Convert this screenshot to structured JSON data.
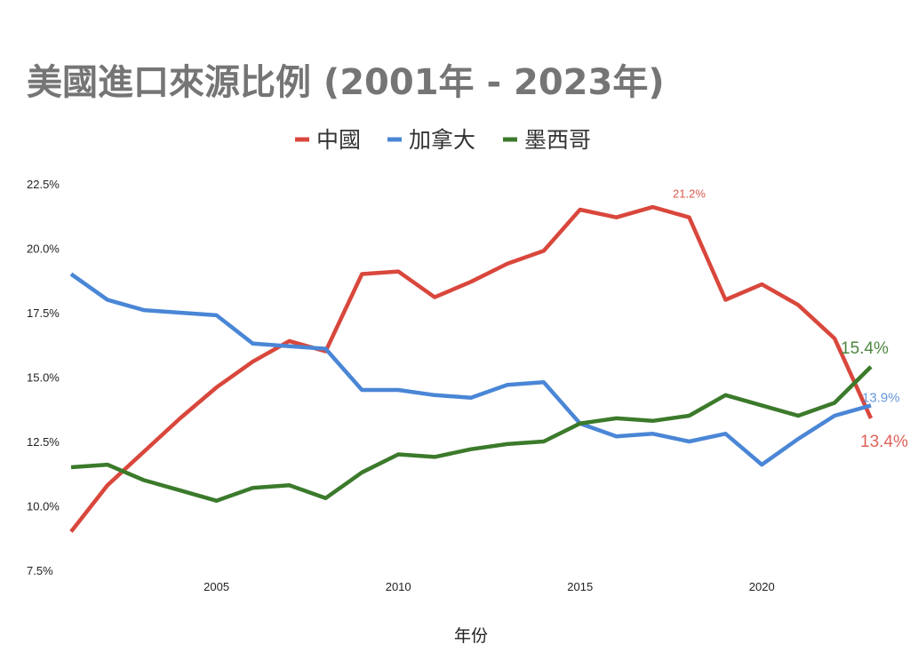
{
  "chart_data": {
    "type": "line",
    "title": "美國進口來源比例 (2001年 - 2023年)",
    "xlabel": "年份",
    "ylabel": "",
    "x": [
      2001,
      2002,
      2003,
      2004,
      2005,
      2006,
      2007,
      2008,
      2009,
      2010,
      2011,
      2012,
      2013,
      2014,
      2015,
      2016,
      2017,
      2018,
      2019,
      2020,
      2021,
      2022,
      2023
    ],
    "xlim": [
      2001,
      2023
    ],
    "xticks": [
      2005,
      2010,
      2015,
      2020
    ],
    "xtick_labels": [
      "2005",
      "2010",
      "2015",
      "2020"
    ],
    "ylim": [
      7.5,
      22.5
    ],
    "yticks": [
      7.5,
      10.0,
      12.5,
      15.0,
      17.5,
      20.0,
      22.5
    ],
    "ytick_labels": [
      "7.5%",
      "10.0%",
      "12.5%",
      "15.0%",
      "17.5%",
      "20.0%",
      "22.5%"
    ],
    "grid": false,
    "legend_position": "top",
    "series": [
      {
        "name": "中國",
        "color": "#d9473c",
        "values": [
          9.0,
          10.8,
          12.1,
          13.4,
          14.6,
          15.6,
          16.4,
          16.0,
          19.0,
          19.1,
          18.1,
          18.7,
          19.4,
          19.9,
          21.5,
          21.2,
          21.6,
          21.2,
          18.0,
          18.6,
          17.8,
          16.5,
          13.4
        ]
      },
      {
        "name": "加拿大",
        "color": "#4a86d6",
        "values": [
          19.0,
          18.0,
          17.6,
          17.5,
          17.4,
          16.3,
          16.2,
          16.1,
          14.5,
          14.5,
          14.3,
          14.2,
          14.7,
          14.8,
          13.2,
          12.7,
          12.8,
          12.5,
          12.8,
          11.6,
          12.6,
          13.5,
          13.9
        ]
      },
      {
        "name": "墨西哥",
        "color": "#3b7a2b",
        "values": [
          11.5,
          11.6,
          11.0,
          10.6,
          10.2,
          10.7,
          10.8,
          10.3,
          11.3,
          12.0,
          11.9,
          12.2,
          12.4,
          12.5,
          13.2,
          13.4,
          13.3,
          13.5,
          14.3,
          13.9,
          13.5,
          14.0,
          15.4
        ]
      }
    ],
    "annotations": [
      {
        "text": "21.2%",
        "series": "中國",
        "x": 2018,
        "y": 21.2
      },
      {
        "text": "13.4%",
        "series": "中國",
        "x": 2023,
        "y": 13.4
      },
      {
        "text": "13.9%",
        "series": "加拿大",
        "x": 2023,
        "y": 13.9
      },
      {
        "text": "15.4%",
        "series": "墨西哥",
        "x": 2023,
        "y": 15.4
      }
    ]
  }
}
